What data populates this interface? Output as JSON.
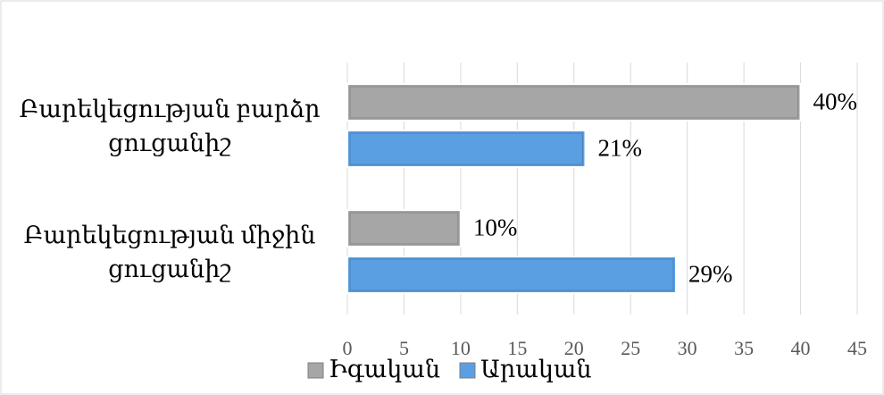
{
  "chart_data": {
    "type": "bar",
    "orientation": "horizontal",
    "categories": [
      "Բարեկեցության բարձր ցուցանիշ",
      "Բարեկեցության միջին ցուցանիշ"
    ],
    "series": [
      {
        "name": "Իգական",
        "color": "#a6a6a6",
        "values": [
          40,
          10
        ],
        "value_labels": [
          "40%",
          "10%"
        ]
      },
      {
        "name": "Արական",
        "color": "#5b9fe3",
        "values": [
          21,
          29
        ],
        "value_labels": [
          "21%",
          "29%"
        ]
      }
    ],
    "xlim": [
      0,
      45
    ],
    "xticks": [
      0,
      5,
      10,
      15,
      20,
      25,
      30,
      35,
      40,
      45
    ],
    "grid": true,
    "legend": "bottom"
  }
}
